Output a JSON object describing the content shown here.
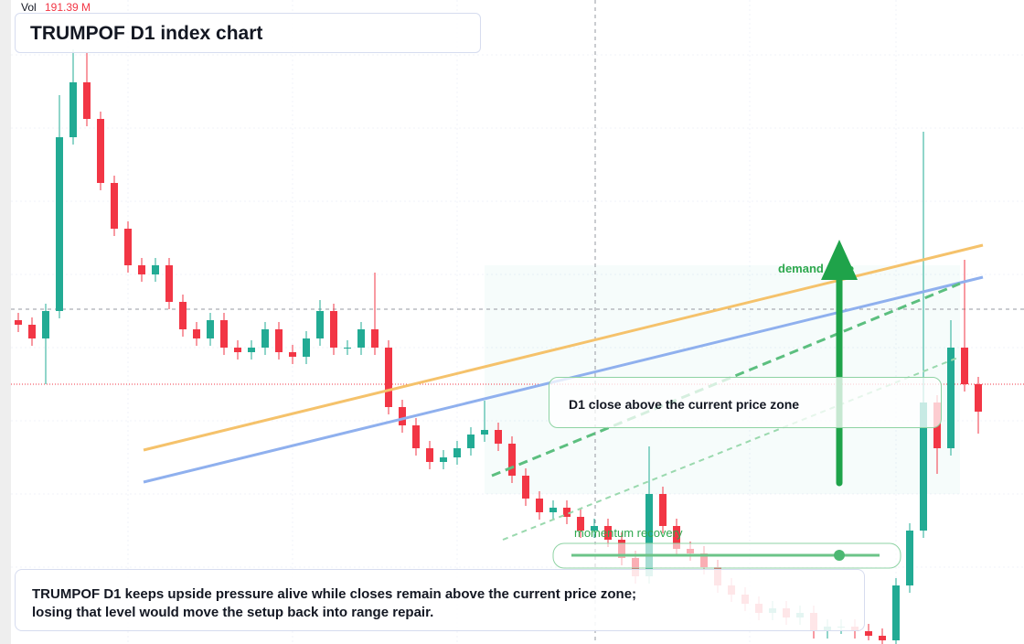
{
  "header": {
    "volume_label": "Vol",
    "volume_value": "191.39 M",
    "title": "TRUMPOF D1 index chart"
  },
  "chart_data": {
    "type": "candlestick",
    "up_color": "#22ab94",
    "down_color": "#f23645",
    "ylim": [
      0,
      704
    ],
    "candles": [
      [
        354,
        362,
        341,
        349
      ],
      [
        349,
        357,
        326,
        334
      ],
      [
        334,
        372,
        284,
        364
      ],
      [
        364,
        600,
        356,
        554
      ],
      [
        554,
        650,
        546,
        614
      ],
      [
        614,
        646,
        566,
        574
      ],
      [
        574,
        582,
        496,
        504
      ],
      [
        504,
        512,
        446,
        454
      ],
      [
        454,
        462,
        406,
        414
      ],
      [
        414,
        422,
        396,
        404
      ],
      [
        404,
        422,
        396,
        414
      ],
      [
        414,
        422,
        366,
        374
      ],
      [
        374,
        382,
        336,
        344
      ],
      [
        344,
        352,
        326,
        334
      ],
      [
        334,
        362,
        326,
        354
      ],
      [
        354,
        362,
        316,
        324
      ],
      [
        324,
        332,
        311,
        319
      ],
      [
        319,
        332,
        311,
        324
      ],
      [
        324,
        352,
        316,
        344
      ],
      [
        344,
        352,
        311,
        319
      ],
      [
        319,
        327,
        306,
        314
      ],
      [
        314,
        342,
        306,
        334
      ],
      [
        334,
        376,
        326,
        364
      ],
      [
        364,
        372,
        316,
        324
      ],
      [
        324,
        332,
        316,
        324
      ],
      [
        324,
        352,
        316,
        344
      ],
      [
        344,
        406,
        316,
        324
      ],
      [
        324,
        332,
        251,
        259
      ],
      [
        259,
        267,
        231,
        239
      ],
      [
        239,
        247,
        206,
        214
      ],
      [
        214,
        222,
        191,
        199
      ],
      [
        199,
        212,
        191,
        204
      ],
      [
        204,
        222,
        196,
        214
      ],
      [
        214,
        237,
        206,
        229
      ],
      [
        229,
        266,
        221,
        234
      ],
      [
        234,
        242,
        211,
        219
      ],
      [
        219,
        227,
        176,
        184
      ],
      [
        184,
        192,
        151,
        159
      ],
      [
        159,
        167,
        136,
        144
      ],
      [
        144,
        157,
        136,
        149
      ],
      [
        149,
        157,
        131,
        139
      ],
      [
        139,
        147,
        116,
        124
      ],
      [
        124,
        137,
        116,
        129
      ],
      [
        129,
        137,
        106,
        114
      ],
      [
        114,
        122,
        86,
        94
      ],
      [
        94,
        102,
        66,
        74
      ],
      [
        74,
        216,
        66,
        164
      ],
      [
        164,
        172,
        121,
        129
      ],
      [
        129,
        137,
        96,
        104
      ],
      [
        104,
        112,
        91,
        99
      ],
      [
        99,
        107,
        76,
        84
      ],
      [
        84,
        92,
        56,
        64
      ],
      [
        64,
        72,
        46,
        54
      ],
      [
        54,
        62,
        36,
        44
      ],
      [
        44,
        52,
        26,
        34
      ],
      [
        34,
        47,
        26,
        39
      ],
      [
        39,
        47,
        21,
        29
      ],
      [
        29,
        42,
        21,
        34
      ],
      [
        34,
        42,
        6,
        14
      ],
      [
        14,
        27,
        6,
        19
      ],
      [
        19,
        27,
        11,
        19
      ],
      [
        19,
        27,
        6,
        14
      ],
      [
        14,
        22,
        4,
        9
      ],
      [
        9,
        17,
        0,
        4
      ],
      [
        4,
        72,
        0,
        64
      ],
      [
        64,
        132,
        56,
        124
      ],
      [
        124,
        560,
        116,
        264
      ],
      [
        264,
        272,
        186,
        214
      ],
      [
        214,
        354,
        206,
        324
      ],
      [
        324,
        420,
        276,
        284
      ],
      [
        284,
        292,
        230,
        254
      ]
    ]
  },
  "annotations": {
    "zone_label": "demand zone",
    "callout": "D1 close above the current price zone",
    "momentum_label": "momentum recovery"
  },
  "caption": {
    "lines": [
      "TRUMPOF D1 keeps upside pressure alive while closes remain above the current price zone;",
      "losing that level would move the setup back into range repair."
    ]
  }
}
